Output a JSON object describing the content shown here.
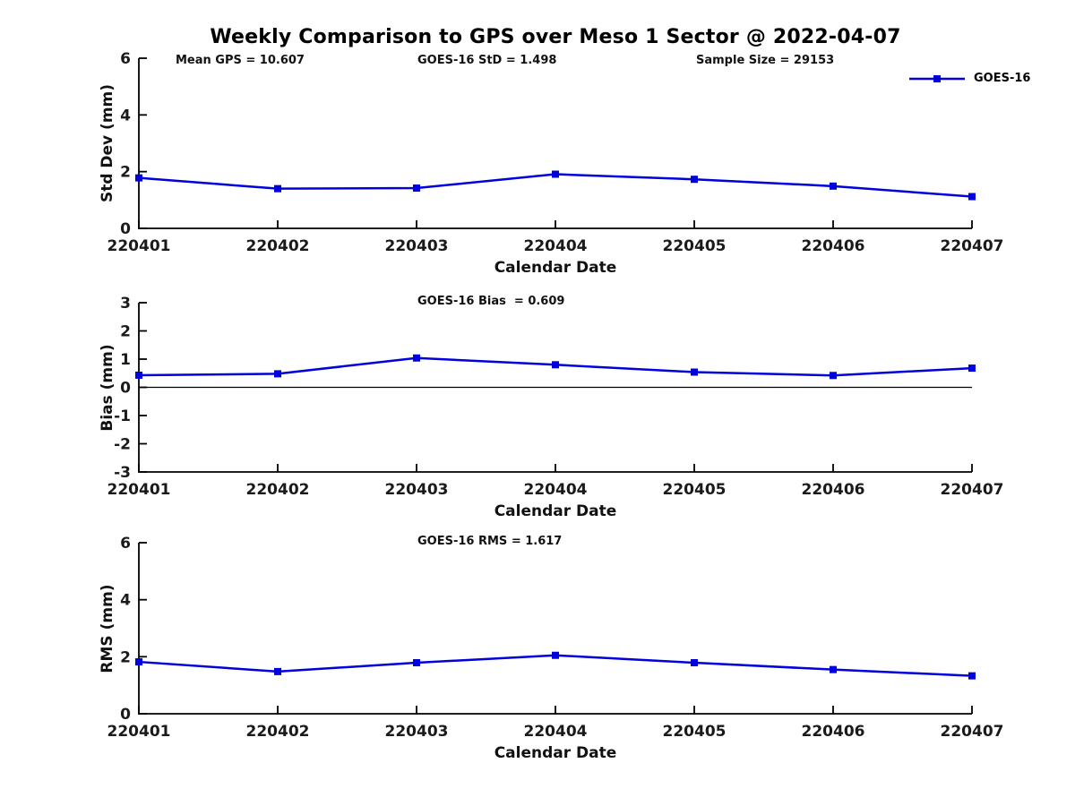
{
  "figure": {
    "title": "Weekly Comparison to GPS over Meso 1 Sector @ 2022-04-07",
    "legend": {
      "label": "GOES-16",
      "position": "top-right"
    },
    "colors": {
      "series": "#0000dd",
      "axis": "#000000",
      "tick_label": "#1a1a1a",
      "zero_line": "#000000",
      "background": "#ffffff"
    }
  },
  "chart_data": [
    {
      "type": "line",
      "ylabel": "Std Dev (mm)",
      "xlabel": "Calendar Date",
      "annotations": [
        "Mean GPS = 10.607",
        "GOES-16 StD = 1.498",
        "Sample Size = 29153"
      ],
      "categories": [
        "220401",
        "220402",
        "220403",
        "220404",
        "220405",
        "220406",
        "220407"
      ],
      "series": [
        {
          "name": "GOES-16",
          "values": [
            1.78,
            1.4,
            1.42,
            1.91,
            1.73,
            1.49,
            1.12
          ]
        }
      ],
      "ylim": [
        0,
        6
      ],
      "yticks": [
        0,
        2,
        4,
        6
      ],
      "zero_line": false,
      "grid": false,
      "legend_position": "top-right"
    },
    {
      "type": "line",
      "ylabel": "Bias (mm)",
      "xlabel": "Calendar Date",
      "annotations": [
        "GOES-16 Bias  = 0.609"
      ],
      "categories": [
        "220401",
        "220402",
        "220403",
        "220404",
        "220405",
        "220406",
        "220407"
      ],
      "series": [
        {
          "name": "GOES-16",
          "values": [
            0.43,
            0.48,
            1.04,
            0.8,
            0.54,
            0.42,
            0.68
          ]
        }
      ],
      "ylim": [
        -3,
        3
      ],
      "yticks": [
        -3,
        -2,
        -1,
        0,
        1,
        2,
        3
      ],
      "zero_line": true,
      "grid": false
    },
    {
      "type": "line",
      "ylabel": "RMS (mm)",
      "xlabel": "Calendar Date",
      "annotations": [
        "GOES-16 RMS = 1.617"
      ],
      "categories": [
        "220401",
        "220402",
        "220403",
        "220404",
        "220405",
        "220406",
        "220407"
      ],
      "series": [
        {
          "name": "GOES-16",
          "values": [
            1.82,
            1.48,
            1.79,
            2.05,
            1.79,
            1.55,
            1.33
          ]
        }
      ],
      "ylim": [
        0,
        6
      ],
      "yticks": [
        0,
        2,
        4,
        6
      ],
      "zero_line": false,
      "grid": false
    }
  ]
}
